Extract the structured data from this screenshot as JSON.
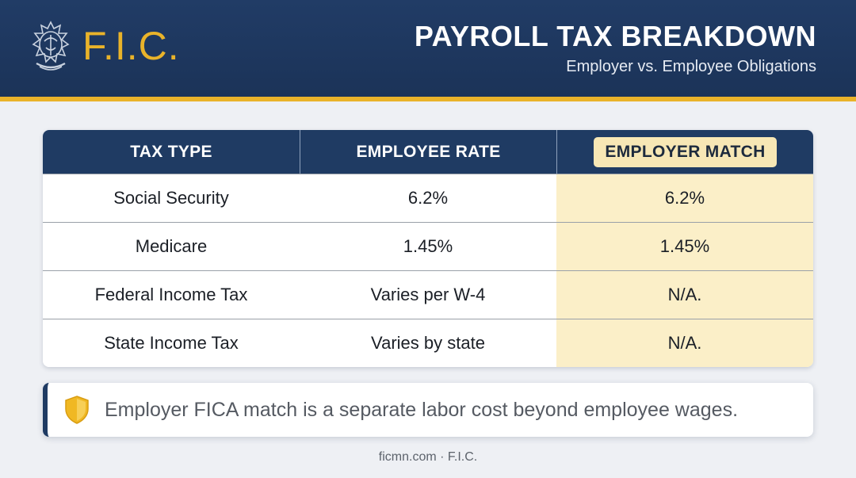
{
  "header": {
    "brand": "F.I.C.",
    "title": "PAYROLL TAX BREAKDOWN",
    "subtitle": "Employer vs. Employee Obligations"
  },
  "table": {
    "columns": [
      "TAX TYPE",
      "EMPLOYEE RATE",
      "EMPLOYER MATCH"
    ],
    "rows": [
      {
        "tax_type": "Social Security",
        "employee_rate": "6.2%",
        "employer_match": "6.2%"
      },
      {
        "tax_type": "Medicare",
        "employee_rate": "1.45%",
        "employer_match": "1.45%"
      },
      {
        "tax_type": "Federal Income Tax",
        "employee_rate": "Varies per W-4",
        "employer_match": "N/A."
      },
      {
        "tax_type": "State Income Tax",
        "employee_rate": "Varies by state",
        "employer_match": "N/A."
      }
    ]
  },
  "note": {
    "icon": "shield-icon",
    "text": "Employer FICA match is a separate labor cost beyond employee wages."
  },
  "footer": {
    "text": "ficmn.com · F.I.C."
  },
  "colors": {
    "navy": "#1f3b63",
    "gold": "#e9b32a",
    "match_highlight": "#fbefc8"
  }
}
